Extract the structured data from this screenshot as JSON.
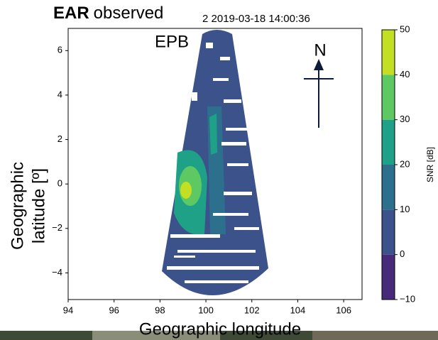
{
  "chart_data": {
    "type": "map",
    "title": {
      "bold": "EAR",
      "text": "observed",
      "line2": "EPB"
    },
    "subtitle": "2 2019-03-18 14:00:36",
    "annotation": "N",
    "xlabel": "Geographic longitude",
    "ylabel": [
      "Geographic",
      "latitude [º]"
    ],
    "xlim": [
      94,
      106.8
    ],
    "ylim": [
      -5.2,
      7
    ],
    "xticks": [
      94,
      96,
      98,
      100,
      102,
      104,
      106
    ],
    "yticks": [
      {
        "value": -4,
        "label": "−4"
      },
      {
        "value": -2,
        "label": "−2"
      },
      0,
      2,
      4,
      6
    ],
    "colorbar": {
      "label": "SNR [dB]",
      "clim": [
        -10,
        50
      ],
      "ticks": [
        {
          "value": -10,
          "label": "−10"
        },
        0,
        10,
        20,
        30,
        40,
        50
      ],
      "colors": [
        "#472a7a",
        "#3b528b",
        "#2d708e",
        "#1fa187",
        "#5ec962",
        "#c2df23"
      ]
    }
  }
}
